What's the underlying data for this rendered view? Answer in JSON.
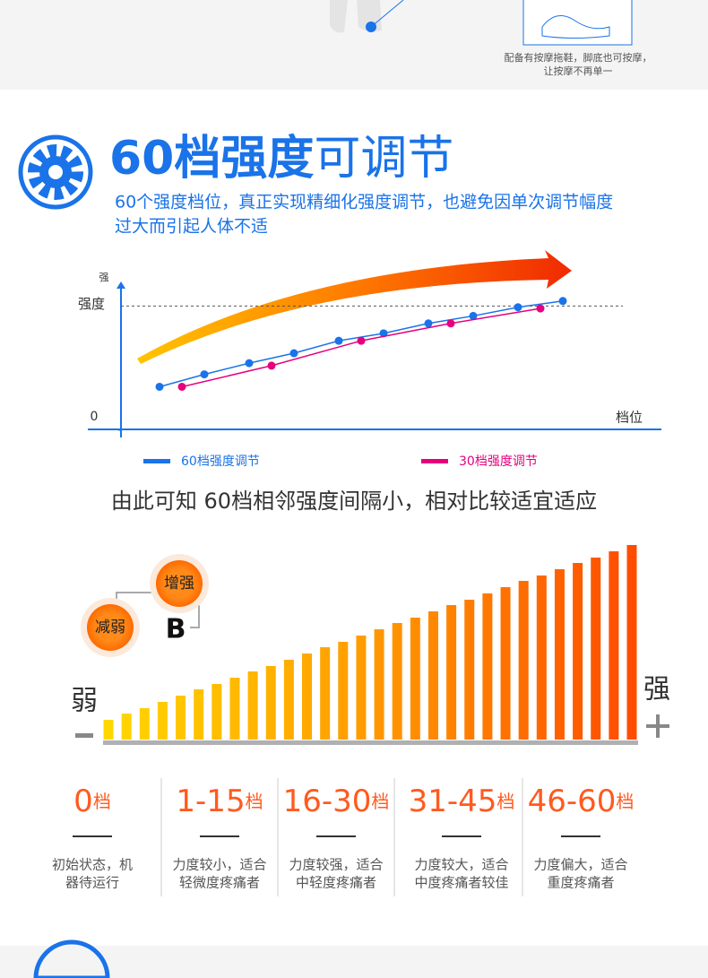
{
  "top": {
    "caption": [
      "配备有按摩拖鞋，脚底也可按摩，",
      "让按摩不再单一"
    ]
  },
  "heading": {
    "bold": "60档强度",
    "light": "可调节"
  },
  "subtitle": [
    "60个强度档位，真正实现精细化强度调节，也避免因单次调节幅度",
    "过大而引起人体不适"
  ],
  "chart_data": [
    {
      "type": "line",
      "y_label": "强",
      "x_label": "档位",
      "reference": {
        "value": 100,
        "label": "强度"
      },
      "xlim": [
        0,
        12
      ],
      "ylim": [
        0,
        119
      ],
      "yticks": [
        0
      ],
      "series": [
        {
          "name": "60档强度调节",
          "color": "#1a73e8",
          "x": [
            1,
            2,
            3,
            4,
            5,
            6,
            7,
            8,
            9,
            10
          ],
          "values": [
            35,
            45,
            54,
            62,
            72,
            78,
            86,
            92,
            99,
            104
          ]
        },
        {
          "name": "30档强度调节",
          "color": "#e6007e",
          "x": [
            1.5,
            3.5,
            5.5,
            7.5,
            9.5
          ],
          "values": [
            35,
            52,
            72,
            86,
            98
          ]
        }
      ]
    },
    {
      "type": "bar",
      "ylim": [
        0,
        220
      ],
      "low_label": "弱",
      "high_label": "强",
      "values": [
        22,
        29,
        35,
        42,
        49,
        56,
        62,
        69,
        76,
        82,
        89,
        96,
        103,
        109,
        116,
        123,
        130,
        136,
        143,
        150,
        156,
        163,
        170,
        177,
        183,
        190,
        197,
        203,
        210,
        217
      ],
      "buttons": {
        "increase": "增强",
        "decrease": "减弱",
        "key": "B"
      }
    }
  ],
  "conclusion": "由此可知 60档相邻强度间隔小，相对比较适宜适应",
  "levels": [
    {
      "range": "0",
      "unit": "档",
      "description": [
        "初始状态，机",
        "器待运行"
      ]
    },
    {
      "range": "1-15",
      "unit": "档",
      "description": [
        "力度较小，适合",
        "轻微度疼痛者"
      ]
    },
    {
      "range": "16-30",
      "unit": "档",
      "description": [
        "力度较强，适合",
        "中轻度疼痛者"
      ]
    },
    {
      "range": "31-45",
      "unit": "档",
      "description": [
        "力度较大，适合",
        "中度疼痛者较佳"
      ]
    },
    {
      "range": "46-60",
      "unit": "档",
      "description": [
        "力度偏大，适合",
        "重度疼痛者"
      ]
    }
  ]
}
